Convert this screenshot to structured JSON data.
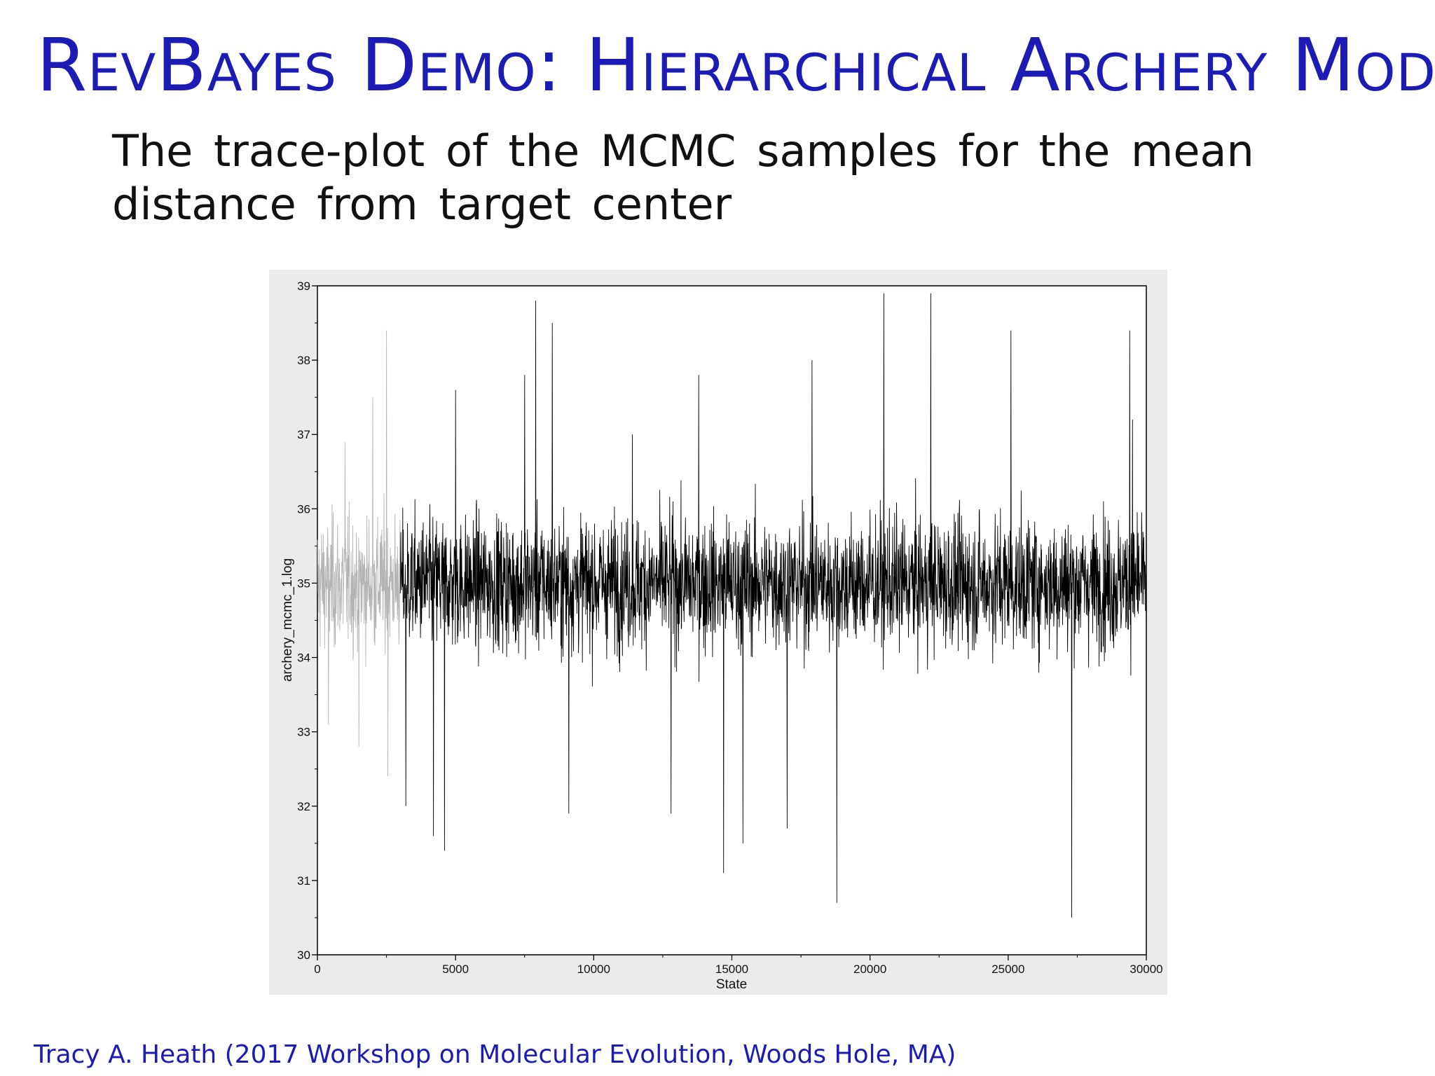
{
  "slide": {
    "title": "RevBayes Demo: Hierarchical Archery Model",
    "subtitle": "The trace-plot of the MCMC samples for the mean distance from target center",
    "footer": "Tracy A. Heath (2017 Workshop on Molecular Evolution, Woods Hole, MA)"
  },
  "colors": {
    "title": "#1c1cb4",
    "trace": "#000000",
    "burnin_trace": "#b4b4b4",
    "panel_background": "#ebebeb",
    "plot_background": "#ffffff"
  },
  "chart_data": {
    "type": "line",
    "title": "",
    "xlabel": "State",
    "ylabel": "archery_mcmc_1.log",
    "xlim": [
      0,
      30000
    ],
    "ylim": [
      30,
      39
    ],
    "x_ticks": [
      "0",
      "5000",
      "10000",
      "15000",
      "20000",
      "25000",
      "30000"
    ],
    "y_ticks": [
      "30",
      "31",
      "32",
      "33",
      "34",
      "35",
      "36",
      "37",
      "38",
      "39"
    ],
    "grid": false,
    "legend": "none",
    "burnin_end_state": 3000,
    "sample_interval": 10,
    "series_summary": {
      "mean": 35.0,
      "typical_range": [
        33.5,
        36.5
      ]
    },
    "notable_points": [
      {
        "x": 400,
        "y": 33.1
      },
      {
        "x": 1000,
        "y": 36.9
      },
      {
        "x": 1500,
        "y": 32.8
      },
      {
        "x": 2000,
        "y": 37.5
      },
      {
        "x": 2500,
        "y": 38.4
      },
      {
        "x": 2550,
        "y": 32.4
      },
      {
        "x": 3200,
        "y": 32.0
      },
      {
        "x": 4200,
        "y": 31.6
      },
      {
        "x": 4600,
        "y": 31.4
      },
      {
        "x": 5000,
        "y": 37.6
      },
      {
        "x": 7500,
        "y": 37.8
      },
      {
        "x": 7900,
        "y": 38.8
      },
      {
        "x": 8500,
        "y": 38.5
      },
      {
        "x": 9100,
        "y": 31.9
      },
      {
        "x": 11400,
        "y": 37.0
      },
      {
        "x": 12800,
        "y": 31.9
      },
      {
        "x": 13800,
        "y": 37.8
      },
      {
        "x": 14700,
        "y": 31.1
      },
      {
        "x": 15400,
        "y": 31.5
      },
      {
        "x": 17000,
        "y": 31.7
      },
      {
        "x": 17900,
        "y": 38.0
      },
      {
        "x": 18800,
        "y": 30.7
      },
      {
        "x": 20500,
        "y": 38.9
      },
      {
        "x": 22200,
        "y": 38.9
      },
      {
        "x": 25100,
        "y": 38.4
      },
      {
        "x": 27300,
        "y": 30.5
      },
      {
        "x": 29400,
        "y": 38.4
      },
      {
        "x": 29500,
        "y": 37.2
      }
    ]
  }
}
